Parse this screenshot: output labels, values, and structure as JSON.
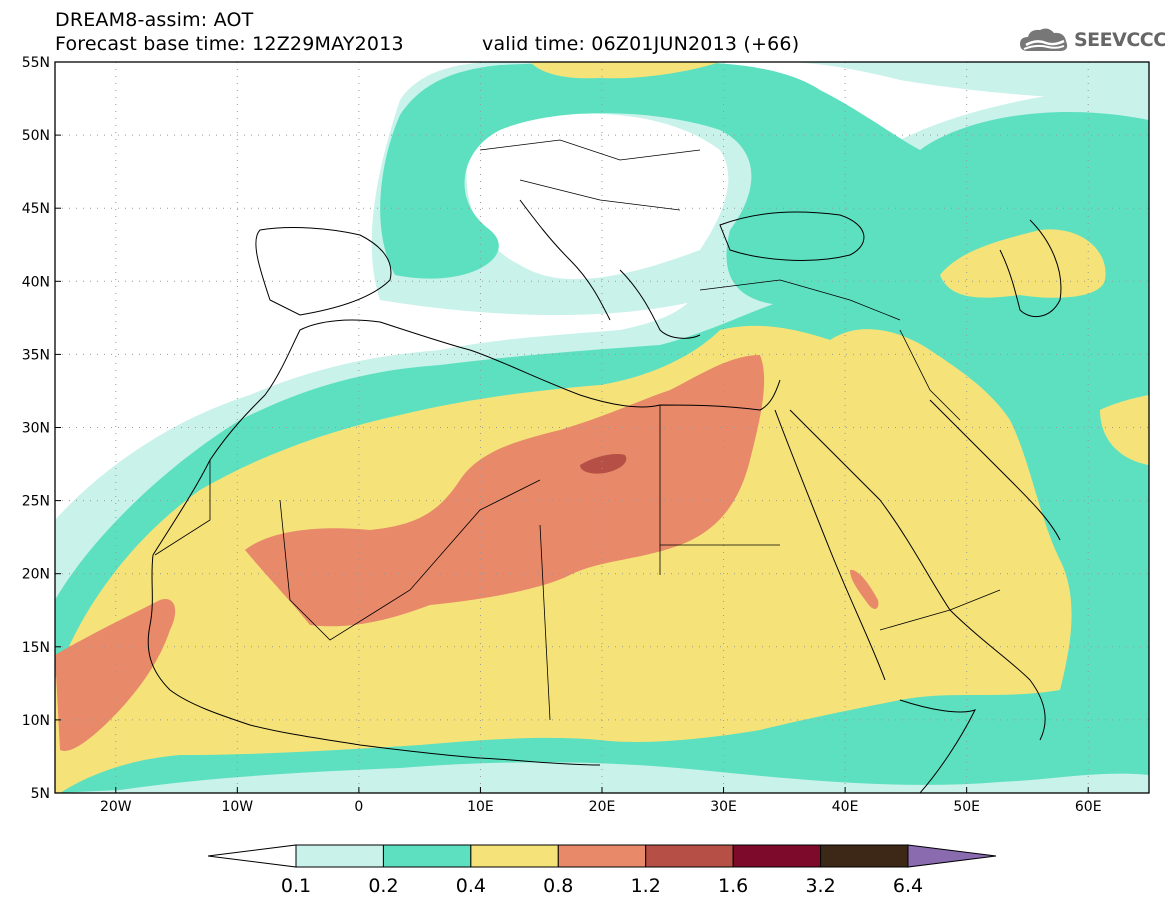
{
  "header": {
    "title": "DREAM8-assim: AOT",
    "base_time": "Forecast base time: 12Z29MAY2013",
    "valid_time": "valid time: 06Z01JUN2013 (+66)"
  },
  "logo": {
    "text": "SEEVCCC",
    "icon": "cloud-icon"
  },
  "map": {
    "lat_labels": [
      "55N",
      "50N",
      "45N",
      "40N",
      "35N",
      "30N",
      "25N",
      "20N",
      "15N",
      "10N",
      "5N"
    ],
    "lon_labels": [
      "20W",
      "10W",
      "0",
      "10E",
      "20E",
      "30E",
      "40E",
      "50E",
      "60E"
    ],
    "lat_range": [
      5,
      55
    ],
    "lon_range": [
      -25,
      65
    ]
  },
  "colorbar": {
    "labels": [
      "0.1",
      "0.2",
      "0.4",
      "0.8",
      "1.2",
      "1.6",
      "3.2",
      "6.4"
    ],
    "colors": [
      "#ffffff",
      "#c8f2ea",
      "#5de0c0",
      "#f5e37a",
      "#e8896a",
      "#b65046",
      "#7d0a2a",
      "#3d2716",
      "#8a6bb0"
    ]
  },
  "colors": {
    "c01": "#c8f2ea",
    "c02": "#5de0c0",
    "c04": "#f5e37a",
    "c08": "#e8896a",
    "c12": "#b65046"
  }
}
